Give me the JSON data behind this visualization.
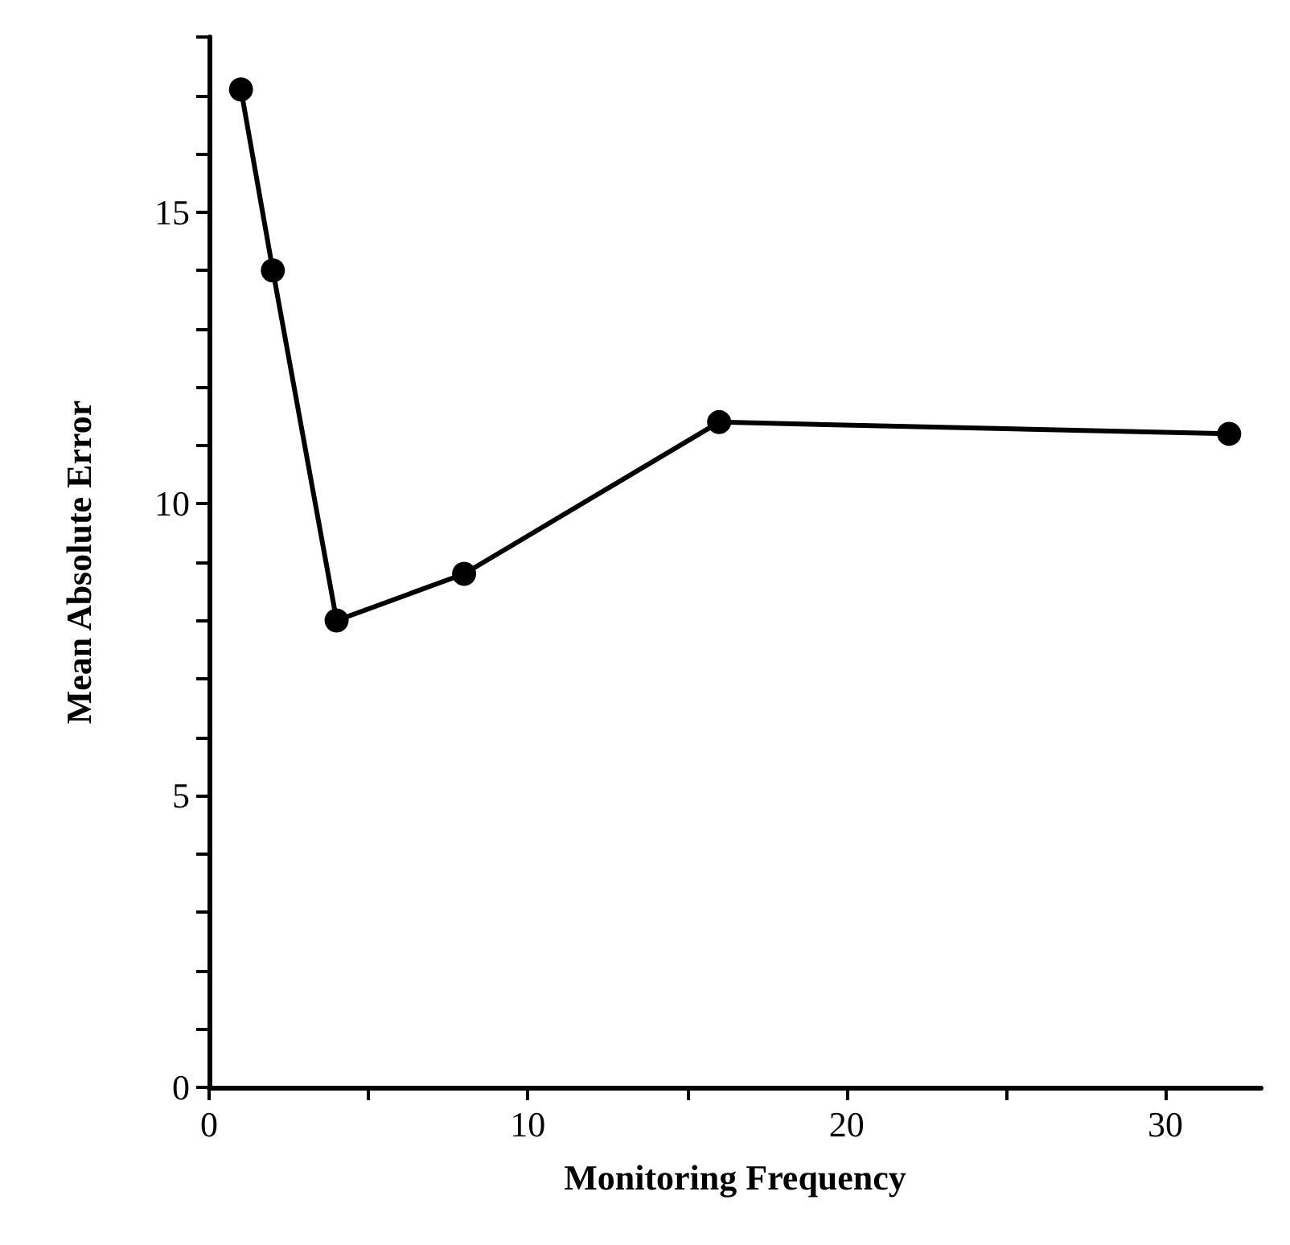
{
  "chart_data": {
    "type": "line",
    "xlabel": "Monitoring Frequency",
    "ylabel": "Mean Absolute Error",
    "x": [
      1,
      2,
      4,
      8,
      16,
      32
    ],
    "series": [
      {
        "color": "#000000",
        "values": [
          17.1,
          14.0,
          8.0,
          8.8,
          11.4,
          11.2
        ]
      }
    ],
    "xlim": [
      0,
      33
    ],
    "xticks": [
      0,
      {
        "value": 5,
        "label": null
      },
      10,
      {
        "value": 15,
        "label": null
      },
      20,
      {
        "value": 25,
        "label": null
      },
      30
    ],
    "ylim": [
      0,
      18
    ],
    "yticks": [
      0,
      {
        "value": 1,
        "label": null
      },
      {
        "value": 2,
        "label": null
      },
      {
        "value": 3,
        "label": null
      },
      {
        "value": 4,
        "label": null
      },
      5,
      {
        "value": 6,
        "label": null
      },
      {
        "value": 7,
        "label": null
      },
      {
        "value": 8,
        "label": null
      },
      {
        "value": 9,
        "label": null
      },
      10,
      {
        "value": 11,
        "label": null
      },
      {
        "value": 12,
        "label": null
      },
      {
        "value": 13,
        "label": null
      },
      {
        "value": 14,
        "label": null
      },
      15,
      {
        "value": 16,
        "label": null
      },
      {
        "value": 17,
        "label": null
      },
      {
        "value": 18,
        "label": null
      }
    ],
    "grid": false,
    "marker": "circle",
    "line_style": "solid"
  }
}
